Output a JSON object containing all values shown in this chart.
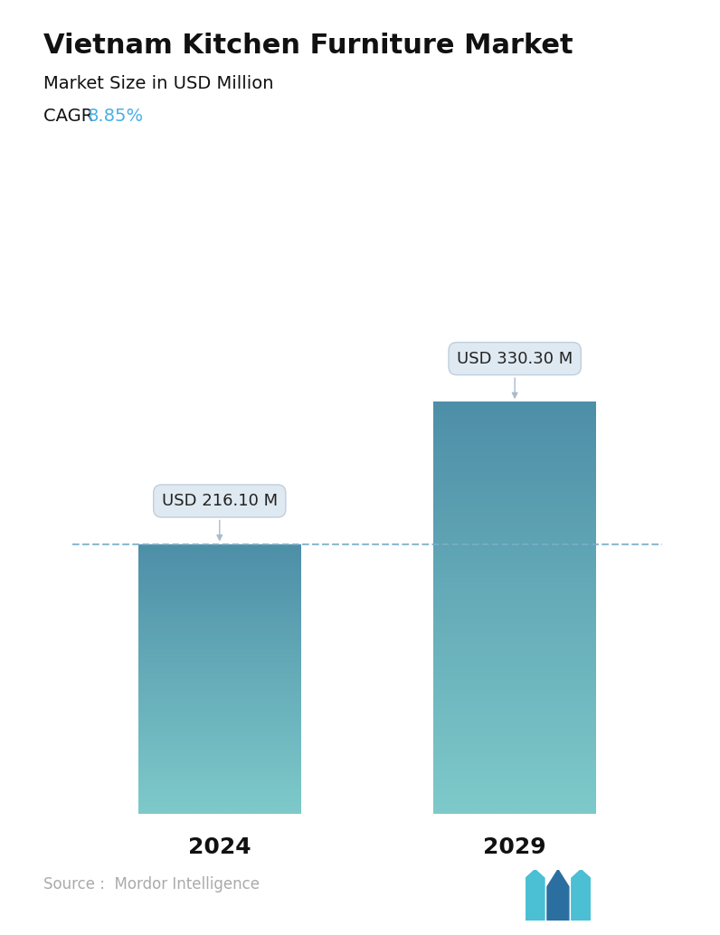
{
  "title": "Vietnam Kitchen Furniture Market",
  "subtitle": "Market Size in USD Million",
  "cagr_label": "CAGR ",
  "cagr_value": "8.85%",
  "cagr_color": "#4AAFE6",
  "categories": [
    "2024",
    "2029"
  ],
  "values": [
    216.1,
    330.3
  ],
  "annotations": [
    "USD 216.10 M",
    "USD 330.30 M"
  ],
  "bar_color_top": "#4E8FA8",
  "bar_color_bottom": "#7ECACA",
  "dashed_line_color": "#7AAEC8",
  "dashed_line_value": 216.1,
  "source_text": "Source :  Mordor Intelligence",
  "source_color": "#aaaaaa",
  "background_color": "#ffffff",
  "title_fontsize": 22,
  "subtitle_fontsize": 14,
  "cagr_fontsize": 14,
  "annotation_fontsize": 13,
  "xlabel_fontsize": 18,
  "source_fontsize": 12,
  "ylim": [
    0,
    420
  ],
  "bar_width": 0.55
}
